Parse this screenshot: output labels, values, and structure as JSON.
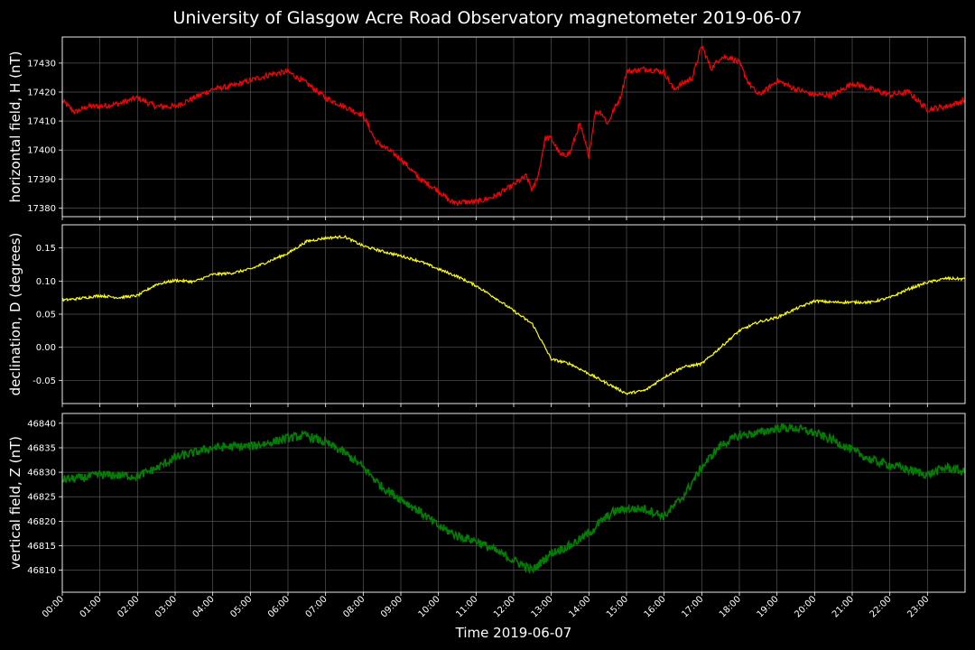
{
  "title": "University of Glasgow Acre Road Observatory magnetometer 2019-06-07",
  "chart_data": {
    "type": "line",
    "xlabel": "Time 2019-06-07",
    "xlim": [
      "00:00",
      "24:00"
    ],
    "xticks": [
      "00:00",
      "01:00",
      "02:00",
      "03:00",
      "04:00",
      "05:00",
      "06:00",
      "07:00",
      "08:00",
      "09:00",
      "10:00",
      "11:00",
      "12:00",
      "13:00",
      "14:00",
      "15:00",
      "16:00",
      "17:00",
      "18:00",
      "19:00",
      "20:00",
      "21:00",
      "22:00",
      "23:00"
    ],
    "grid": true,
    "panels": [
      {
        "ylabel": "horizontal field, H (nT)",
        "color": "#ff0000",
        "ylim": [
          17377,
          17439
        ],
        "yticks": [
          17380,
          17390,
          17400,
          17410,
          17420,
          17430
        ],
        "noise": 1.0,
        "x": [
          "00:00",
          "00:20",
          "00:40",
          "01:00",
          "01:30",
          "02:00",
          "02:30",
          "03:00",
          "03:30",
          "04:00",
          "04:30",
          "05:00",
          "05:30",
          "06:00",
          "06:30",
          "07:00",
          "07:30",
          "08:00",
          "08:20",
          "08:40",
          "09:00",
          "09:30",
          "10:00",
          "10:20",
          "10:40",
          "11:00",
          "11:30",
          "12:00",
          "12:20",
          "12:30",
          "12:40",
          "12:50",
          "13:00",
          "13:15",
          "13:30",
          "13:45",
          "14:00",
          "14:10",
          "14:20",
          "14:30",
          "14:40",
          "14:50",
          "15:00",
          "15:30",
          "16:00",
          "16:15",
          "16:30",
          "16:45",
          "17:00",
          "17:15",
          "17:30",
          "17:45",
          "18:00",
          "18:15",
          "18:30",
          "18:45",
          "19:00",
          "19:30",
          "20:00",
          "20:30",
          "21:00",
          "21:30",
          "22:00",
          "22:30",
          "23:00",
          "23:30",
          "24:00"
        ],
        "y": [
          17417,
          17413,
          17415,
          17415,
          17416,
          17418,
          17415,
          17415,
          17418,
          17421,
          17422,
          17424,
          17426,
          17427,
          17423,
          17418,
          17415,
          17412,
          17403,
          17400,
          17397,
          17390,
          17386,
          17382,
          17382,
          17382,
          17384,
          17388,
          17391,
          17386,
          17392,
          17404,
          17404,
          17398,
          17399,
          17409,
          17398,
          17413,
          17413,
          17409,
          17414,
          17418,
          17427,
          17428,
          17427,
          17421,
          17423,
          17425,
          17436,
          17428,
          17432,
          17432,
          17430,
          17423,
          17419,
          17421,
          17424,
          17421,
          17419,
          17419,
          17423,
          17421,
          17419,
          17420,
          17414,
          17415,
          17417
        ]
      },
      {
        "ylabel": "declination, D (degrees)",
        "color": "#ffff00",
        "ylim": [
          -0.085,
          0.185
        ],
        "yticks": [
          -0.05,
          0.0,
          0.05,
          0.1,
          0.15
        ],
        "noise": 0.002,
        "x": [
          "00:00",
          "00:30",
          "01:00",
          "01:30",
          "02:00",
          "02:30",
          "03:00",
          "03:30",
          "04:00",
          "04:30",
          "05:00",
          "05:30",
          "06:00",
          "06:30",
          "07:00",
          "07:30",
          "08:00",
          "08:30",
          "09:00",
          "09:30",
          "10:00",
          "10:30",
          "11:00",
          "11:30",
          "12:00",
          "12:30",
          "13:00",
          "13:30",
          "14:00",
          "14:30",
          "15:00",
          "15:30",
          "16:00",
          "16:30",
          "17:00",
          "17:30",
          "18:00",
          "18:30",
          "19:00",
          "19:30",
          "20:00",
          "20:30",
          "21:00",
          "21:30",
          "22:00",
          "22:30",
          "23:00",
          "23:30",
          "24:00"
        ],
        "y": [
          0.071,
          0.074,
          0.078,
          0.075,
          0.078,
          0.095,
          0.101,
          0.099,
          0.11,
          0.112,
          0.118,
          0.13,
          0.142,
          0.16,
          0.165,
          0.167,
          0.153,
          0.145,
          0.138,
          0.13,
          0.118,
          0.107,
          0.093,
          0.075,
          0.055,
          0.035,
          -0.018,
          -0.025,
          -0.04,
          -0.055,
          -0.07,
          -0.065,
          -0.045,
          -0.03,
          -0.025,
          0.0,
          0.025,
          0.038,
          0.045,
          0.058,
          0.07,
          0.068,
          0.068,
          0.068,
          0.075,
          0.088,
          0.098,
          0.104,
          0.103
        ]
      },
      {
        "ylabel": "vertical field, Z (nT)",
        "color": "#008000",
        "ylim": [
          46805.5,
          46842
        ],
        "yticks": [
          46810,
          46815,
          46820,
          46825,
          46830,
          46835,
          46840
        ],
        "noise": 0.9,
        "x": [
          "00:00",
          "00:30",
          "01:00",
          "01:30",
          "02:00",
          "02:30",
          "03:00",
          "03:30",
          "04:00",
          "04:30",
          "05:00",
          "05:30",
          "06:00",
          "06:30",
          "07:00",
          "07:30",
          "08:00",
          "08:30",
          "09:00",
          "09:30",
          "10:00",
          "10:30",
          "11:00",
          "11:30",
          "12:00",
          "12:30",
          "13:00",
          "13:30",
          "14:00",
          "14:20",
          "14:40",
          "15:00",
          "15:30",
          "16:00",
          "16:30",
          "17:00",
          "17:30",
          "18:00",
          "18:30",
          "19:00",
          "19:30",
          "20:00",
          "20:30",
          "21:00",
          "21:30",
          "22:00",
          "22:30",
          "23:00",
          "23:30",
          "24:00"
        ],
        "y": [
          46828.5,
          46828.8,
          46829.5,
          46829.3,
          46829.2,
          46830.8,
          46833.0,
          46834.0,
          46835.0,
          46835.2,
          46835.3,
          46836.0,
          46837.0,
          46837.5,
          46836.0,
          46834.0,
          46831.0,
          46827.0,
          46824.5,
          46822.0,
          46819.0,
          46817.0,
          46816.0,
          46814.0,
          46812.0,
          46810.0,
          46813.5,
          46815.0,
          46817.5,
          46820.0,
          46822.0,
          46822.5,
          46822.5,
          46821.0,
          46825.0,
          46831.0,
          46835.5,
          46837.5,
          46838.0,
          46839.0,
          46839.0,
          46838.0,
          46836.5,
          46834.5,
          46832.5,
          46831.5,
          46830.5,
          46829.5,
          46831.0,
          46830.0
        ]
      }
    ]
  }
}
